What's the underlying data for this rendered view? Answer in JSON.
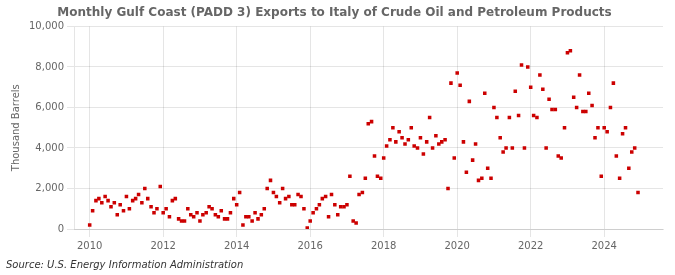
{
  "chart_data": {
    "type": "scatter",
    "title": "Monthly Gulf Coast (PADD 3) Exports to Italy of Crude Oil and Petroleum Products",
    "ylabel": "Thousand Barrels",
    "annotations": [
      "Source: U.S. Energy Information Administration"
    ],
    "color": "#cc0000",
    "marker": "square",
    "grid": true,
    "xlim": [
      2009.6,
      2025.6
    ],
    "ylim": [
      0,
      10000
    ],
    "xticks": [
      2010,
      2012,
      2014,
      2016,
      2018,
      2020,
      2022,
      2024
    ],
    "yticks": [
      0,
      {
        "value": 2000,
        "label": "2,000"
      },
      {
        "value": 4000,
        "label": "4,000"
      },
      {
        "value": 6000,
        "label": "6,000"
      },
      {
        "value": 8000,
        "label": "8,000"
      },
      {
        "value": 10000,
        "label": "10,000"
      }
    ],
    "x": [
      2010.0,
      2010.08,
      2010.17,
      2010.25,
      2010.33,
      2010.42,
      2010.5,
      2010.58,
      2010.67,
      2010.75,
      2010.83,
      2010.92,
      2011.0,
      2011.08,
      2011.17,
      2011.25,
      2011.33,
      2011.42,
      2011.5,
      2011.58,
      2011.67,
      2011.75,
      2011.83,
      2011.92,
      2012.0,
      2012.08,
      2012.17,
      2012.25,
      2012.33,
      2012.42,
      2012.5,
      2012.58,
      2012.67,
      2012.75,
      2012.83,
      2012.92,
      2013.0,
      2013.08,
      2013.17,
      2013.25,
      2013.33,
      2013.42,
      2013.5,
      2013.58,
      2013.67,
      2013.75,
      2013.83,
      2013.92,
      2014.0,
      2014.08,
      2014.17,
      2014.25,
      2014.33,
      2014.42,
      2014.5,
      2014.58,
      2014.67,
      2014.75,
      2014.83,
      2014.92,
      2015.0,
      2015.08,
      2015.17,
      2015.25,
      2015.33,
      2015.42,
      2015.5,
      2015.58,
      2015.67,
      2015.75,
      2015.83,
      2015.92,
      2016.0,
      2016.08,
      2016.17,
      2016.25,
      2016.33,
      2016.42,
      2016.5,
      2016.58,
      2016.67,
      2016.75,
      2016.83,
      2016.92,
      2017.0,
      2017.08,
      2017.17,
      2017.25,
      2017.33,
      2017.42,
      2017.5,
      2017.58,
      2017.67,
      2017.75,
      2017.83,
      2017.92,
      2018.0,
      2018.08,
      2018.17,
      2018.25,
      2018.33,
      2018.42,
      2018.5,
      2018.58,
      2018.67,
      2018.75,
      2018.83,
      2018.92,
      2019.0,
      2019.08,
      2019.17,
      2019.25,
      2019.33,
      2019.42,
      2019.5,
      2019.58,
      2019.67,
      2019.75,
      2019.83,
      2019.92,
      2020.0,
      2020.08,
      2020.17,
      2020.25,
      2020.33,
      2020.42,
      2020.5,
      2020.58,
      2020.67,
      2020.75,
      2020.83,
      2020.92,
      2021.0,
      2021.08,
      2021.17,
      2021.25,
      2021.33,
      2021.42,
      2021.5,
      2021.58,
      2021.67,
      2021.75,
      2021.83,
      2021.92,
      2022.0,
      2022.08,
      2022.17,
      2022.25,
      2022.33,
      2022.42,
      2022.5,
      2022.58,
      2022.67,
      2022.75,
      2022.83,
      2022.92,
      2023.0,
      2023.08,
      2023.17,
      2023.25,
      2023.33,
      2023.42,
      2023.5,
      2023.58,
      2023.67,
      2023.75,
      2023.83,
      2023.92,
      2024.0,
      2024.08,
      2024.17,
      2024.25,
      2024.33,
      2024.42,
      2024.5,
      2024.58,
      2024.67,
      2024.75,
      2024.83,
      2024.92
    ],
    "values": [
      200,
      900,
      1400,
      1500,
      1300,
      1600,
      1400,
      1100,
      1300,
      700,
      1200,
      900,
      1600,
      1000,
      1400,
      1500,
      1700,
      1300,
      2000,
      1500,
      1100,
      800,
      1000,
      2100,
      800,
      1000,
      600,
      1400,
      1500,
      500,
      400,
      400,
      1000,
      700,
      600,
      800,
      400,
      700,
      800,
      1100,
      1000,
      700,
      600,
      900,
      500,
      500,
      800,
      1500,
      1200,
      1800,
      200,
      600,
      600,
      400,
      800,
      500,
      700,
      1000,
      2000,
      2400,
      1800,
      1600,
      1300,
      2000,
      1500,
      1600,
      1200,
      1200,
      1700,
      1600,
      1000,
      50,
      400,
      800,
      1000,
      1200,
      1500,
      1600,
      600,
      1700,
      1200,
      700,
      1100,
      1100,
      1200,
      2600,
      400,
      300,
      1700,
      1800,
      2500,
      5200,
      5300,
      3600,
      2600,
      2500,
      3500,
      4100,
      4400,
      5000,
      4300,
      4800,
      4500,
      4200,
      4400,
      5000,
      4100,
      4000,
      4500,
      3700,
      4300,
      5500,
      4000,
      4600,
      4200,
      4300,
      4400,
      2000,
      7200,
      3500,
      7700,
      7100,
      4300,
      2800,
      6300,
      3400,
      4200,
      2400,
      2500,
      6700,
      3000,
      2500,
      6000,
      5500,
      4500,
      3800,
      4000,
      5500,
      4000,
      6800,
      5600,
      8100,
      4000,
      8000,
      7000,
      5600,
      5500,
      7600,
      6900,
      4000,
      6400,
      5900,
      5900,
      3600,
      3500,
      5000,
      8700,
      8800,
      6500,
      6000,
      7600,
      5800,
      5800,
      6700,
      6100,
      4500,
      5000,
      2600,
      5000,
      4800,
      6000,
      7200,
      3600,
      2500,
      4700,
      5000,
      3000,
      3800,
      4000,
      1800
    ]
  }
}
